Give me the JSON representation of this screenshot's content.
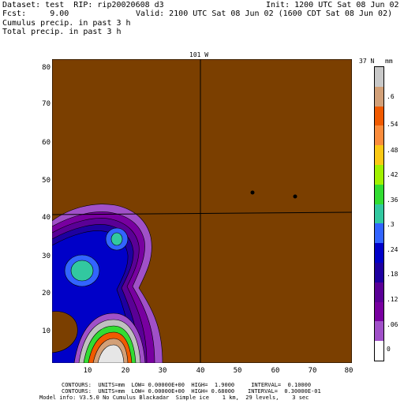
{
  "header": {
    "line1_left": "Dataset: test  RIP: rip20020608 d3",
    "line1_right": "Init: 1200 UTC Sat 08 Jun 02",
    "line2_left": "Fcst:     9.00",
    "line2_right": "Valid: 2100 UTC Sat 08 Jun 02 (1600 CDT Sat 08 Jun 02)",
    "line3": "Cumulus precip. in past 3 h",
    "line4": "Total precip. in past 3 h"
  },
  "plot": {
    "top_label": "101 W",
    "right_label": "37 N",
    "land_color": "#7b3f00",
    "y_ticks": [
      "80",
      "70",
      "60",
      "50",
      "40",
      "30",
      "20",
      "10"
    ],
    "x_ticks": [
      "10",
      "20",
      "30",
      "40",
      "50",
      "60",
      "70",
      "80"
    ]
  },
  "colorbar": {
    "unit": "mm",
    "labels": [
      ".6",
      ".54",
      ".48",
      ".42",
      ".36",
      ".3",
      ".24",
      ".18",
      ".12",
      ".06",
      "0"
    ],
    "colors": [
      "#c8c8c8",
      "#d2a078",
      "#f05a00",
      "#fa8c3c",
      "#fac814",
      "#a0f000",
      "#32dc32",
      "#32c8a0",
      "#3264ff",
      "#0000c8",
      "#1e00a0",
      "#5a0096",
      "#7800a0",
      "#a050c8",
      "#ffffff"
    ]
  },
  "footer": {
    "line1": "CONTOURS:  UNITS=mm  LOW= 0.00000E+00  HIGH=  1.9000     INTERVAL=  0.10000",
    "line2": "CONTOURS:  UNITS=mm  LOW= 0.00000E+00  HIGH= 0.68000    INTERVAL=  0.30000E-01",
    "line3": "Model info: V3.5.0 No Cumulus Blackadar  Simple ice    1 km,  29 levels,    3 sec"
  }
}
